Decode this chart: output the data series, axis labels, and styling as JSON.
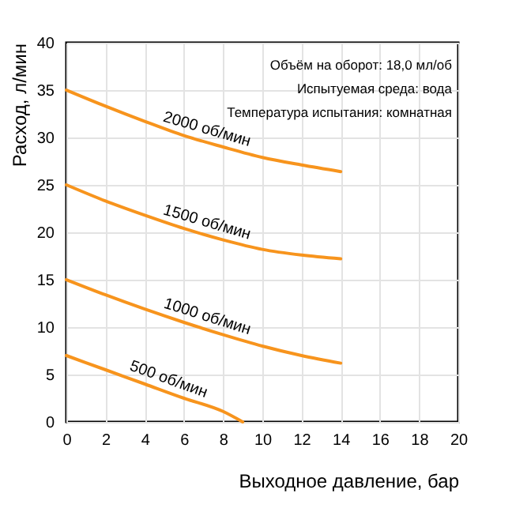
{
  "chart_data": {
    "type": "line",
    "xlabel": "Выходное давление, бар",
    "ylabel": "Расход, л/мин",
    "x": [
      0,
      2,
      4,
      6,
      8,
      10,
      12,
      14
    ],
    "series": [
      {
        "name": "2000 об/мин",
        "color": "#f7941d",
        "values": [
          35,
          33.3,
          31.7,
          30.2,
          29,
          27.9,
          27.1,
          26.4
        ]
      },
      {
        "name": "1500 об/мин",
        "color": "#f7941d",
        "values": [
          25,
          23.3,
          21.8,
          20.4,
          19.2,
          18.2,
          17.6,
          17.2
        ]
      },
      {
        "name": "1000 об/мин",
        "color": "#f7941d",
        "values": [
          15,
          13.4,
          11.9,
          10.5,
          9.2,
          8,
          7,
          6.2
        ]
      },
      {
        "name": "500 об/мин",
        "color": "#f7941d",
        "x": [
          0,
          2,
          4,
          6,
          8,
          9
        ],
        "values": [
          7,
          5.5,
          4,
          2.5,
          1.1,
          0
        ]
      }
    ],
    "annotations": [
      "Объём на оборот: 18,0 мл/об",
      "Испытуемая среда: вода",
      "Температура испытания: комнатная"
    ],
    "xlim": [
      0,
      20
    ],
    "xticks": [
      0,
      2,
      4,
      6,
      8,
      10,
      12,
      14,
      16,
      18,
      20
    ],
    "ylim": [
      0,
      40
    ],
    "yticks": [
      0,
      5,
      10,
      15,
      20,
      25,
      30,
      35,
      40
    ],
    "grid": true,
    "legend": false,
    "marker": "none",
    "line_style": "solid"
  }
}
